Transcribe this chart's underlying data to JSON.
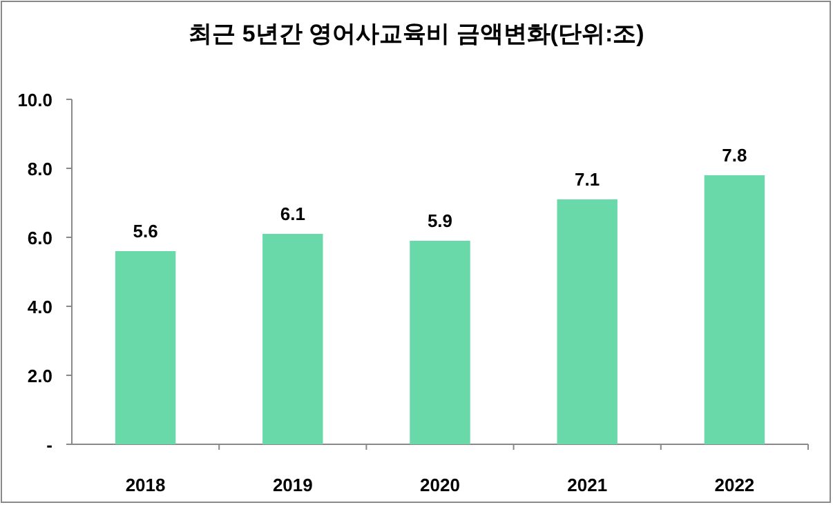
{
  "chart_data": {
    "type": "bar",
    "title": "최근 5년간 영어사교육비 금액변화(단위:조)",
    "categories": [
      "2018",
      "2019",
      "2020",
      "2021",
      "2022"
    ],
    "values": [
      5.6,
      6.1,
      5.9,
      7.1,
      7.8
    ],
    "color": "#6ad9aa",
    "ylim": [
      0,
      10
    ],
    "yticks": [
      {
        "value": 0,
        "label": "-"
      },
      {
        "value": 2,
        "label": "2.0"
      },
      {
        "value": 4,
        "label": "4.0"
      },
      {
        "value": 6,
        "label": "6.0"
      },
      {
        "value": 8,
        "label": "8.0"
      },
      {
        "value": 10,
        "label": "10.0"
      }
    ],
    "data_labels": true
  }
}
